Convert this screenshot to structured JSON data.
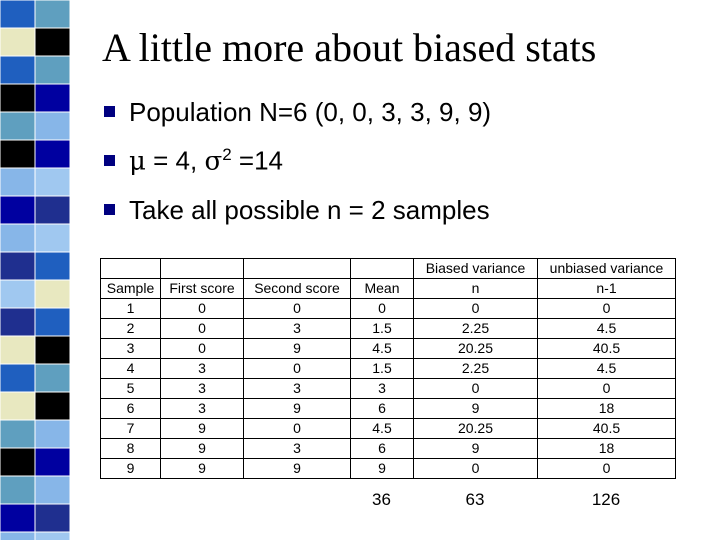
{
  "title": "A little more about biased stats",
  "bullets": {
    "population": "Population N=6 (0, 0, 3, 3, 9, 9)",
    "moments": {
      "mu": "μ",
      "text1": " = 4, ",
      "sigma": "σ",
      "sup": "2",
      "text2": " =14"
    },
    "samples": "Take all possible n = 2 samples"
  },
  "table": {
    "group_headers": [
      "Biased variance",
      "unbiased variance"
    ],
    "columns": [
      "Sample",
      "First score",
      "Second score",
      "Mean",
      "n",
      "n-1"
    ],
    "rows": [
      [
        "1",
        "0",
        "0",
        "0",
        "0",
        "0"
      ],
      [
        "2",
        "0",
        "3",
        "1.5",
        "2.25",
        "4.5"
      ],
      [
        "3",
        "0",
        "9",
        "4.5",
        "20.25",
        "40.5"
      ],
      [
        "4",
        "3",
        "0",
        "1.5",
        "2.25",
        "4.5"
      ],
      [
        "5",
        "3",
        "3",
        "3",
        "0",
        "0"
      ],
      [
        "6",
        "3",
        "9",
        "6",
        "9",
        "18"
      ],
      [
        "7",
        "9",
        "0",
        "4.5",
        "20.25",
        "40.5"
      ],
      [
        "8",
        "9",
        "3",
        "6",
        "9",
        "18"
      ],
      [
        "9",
        "9",
        "9",
        "9",
        "0",
        "0"
      ]
    ],
    "totals": [
      "36",
      "63",
      "126"
    ]
  }
}
